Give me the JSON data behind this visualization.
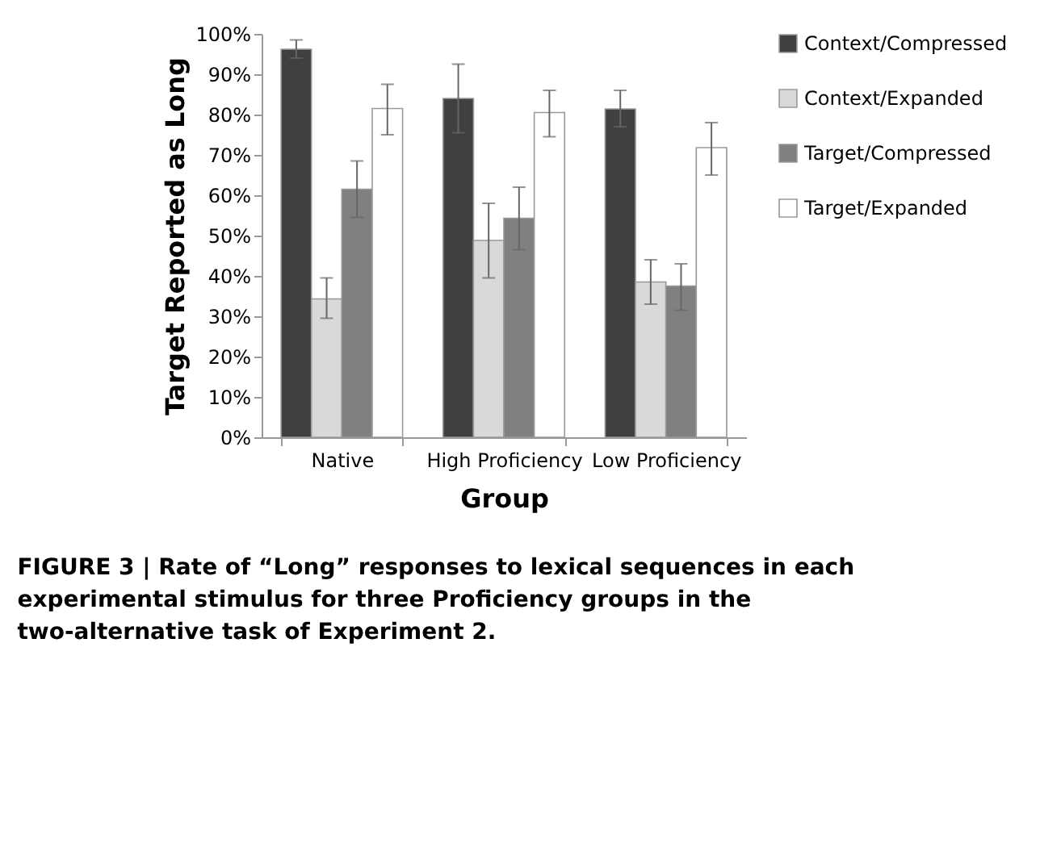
{
  "chart_data": {
    "type": "bar",
    "xlabel": "Group",
    "ylabel": "Target Reported as Long",
    "categories": [
      "Native",
      "High Proficiency",
      "Low Proficiency"
    ],
    "series": [
      {
        "name": "Context/Compressed",
        "color": "#404040",
        "values": [
          96.2,
          84,
          81.4
        ],
        "errors": [
          [
            94,
            98.5
          ],
          [
            75.5,
            92.5
          ],
          [
            77,
            86
          ]
        ]
      },
      {
        "name": "Context/Expanded",
        "color": "#d9d9d9",
        "values": [
          34.3,
          48.8,
          38.5
        ],
        "errors": [
          [
            29.5,
            39.5
          ],
          [
            39.5,
            58
          ],
          [
            33,
            44
          ]
        ]
      },
      {
        "name": "Target/Compressed",
        "color": "#808080",
        "values": [
          61.5,
          54.3,
          37.5
        ],
        "errors": [
          [
            54.5,
            68.5
          ],
          [
            46.5,
            62
          ],
          [
            31.5,
            43
          ]
        ]
      },
      {
        "name": "Target/Expanded",
        "color": "#ffffff",
        "values": [
          81.5,
          80.5,
          71.8
        ],
        "errors": [
          [
            75,
            87.5
          ],
          [
            74.5,
            86
          ],
          [
            65,
            78
          ]
        ]
      }
    ],
    "ylim": [
      0,
      100
    ],
    "yticks": [
      {
        "value": 0,
        "label": "0%"
      },
      {
        "value": 10,
        "label": "10%"
      },
      {
        "value": 20,
        "label": "20%"
      },
      {
        "value": 30,
        "label": "30%"
      },
      {
        "value": 40,
        "label": "40%"
      },
      {
        "value": 50,
        "label": "50%"
      },
      {
        "value": 60,
        "label": "60%"
      },
      {
        "value": 70,
        "label": "70%"
      },
      {
        "value": 80,
        "label": "80%"
      },
      {
        "value": 90,
        "label": "90%"
      },
      {
        "value": 100,
        "label": "100%"
      }
    ],
    "grid": false,
    "legend": "right",
    "annotations": [
      "FIGURE 3 | Rate of “Long” responses to lexical sequences in each experimental stimulus for three Proficiency groups in the two-alternative task of Experiment 2."
    ]
  }
}
